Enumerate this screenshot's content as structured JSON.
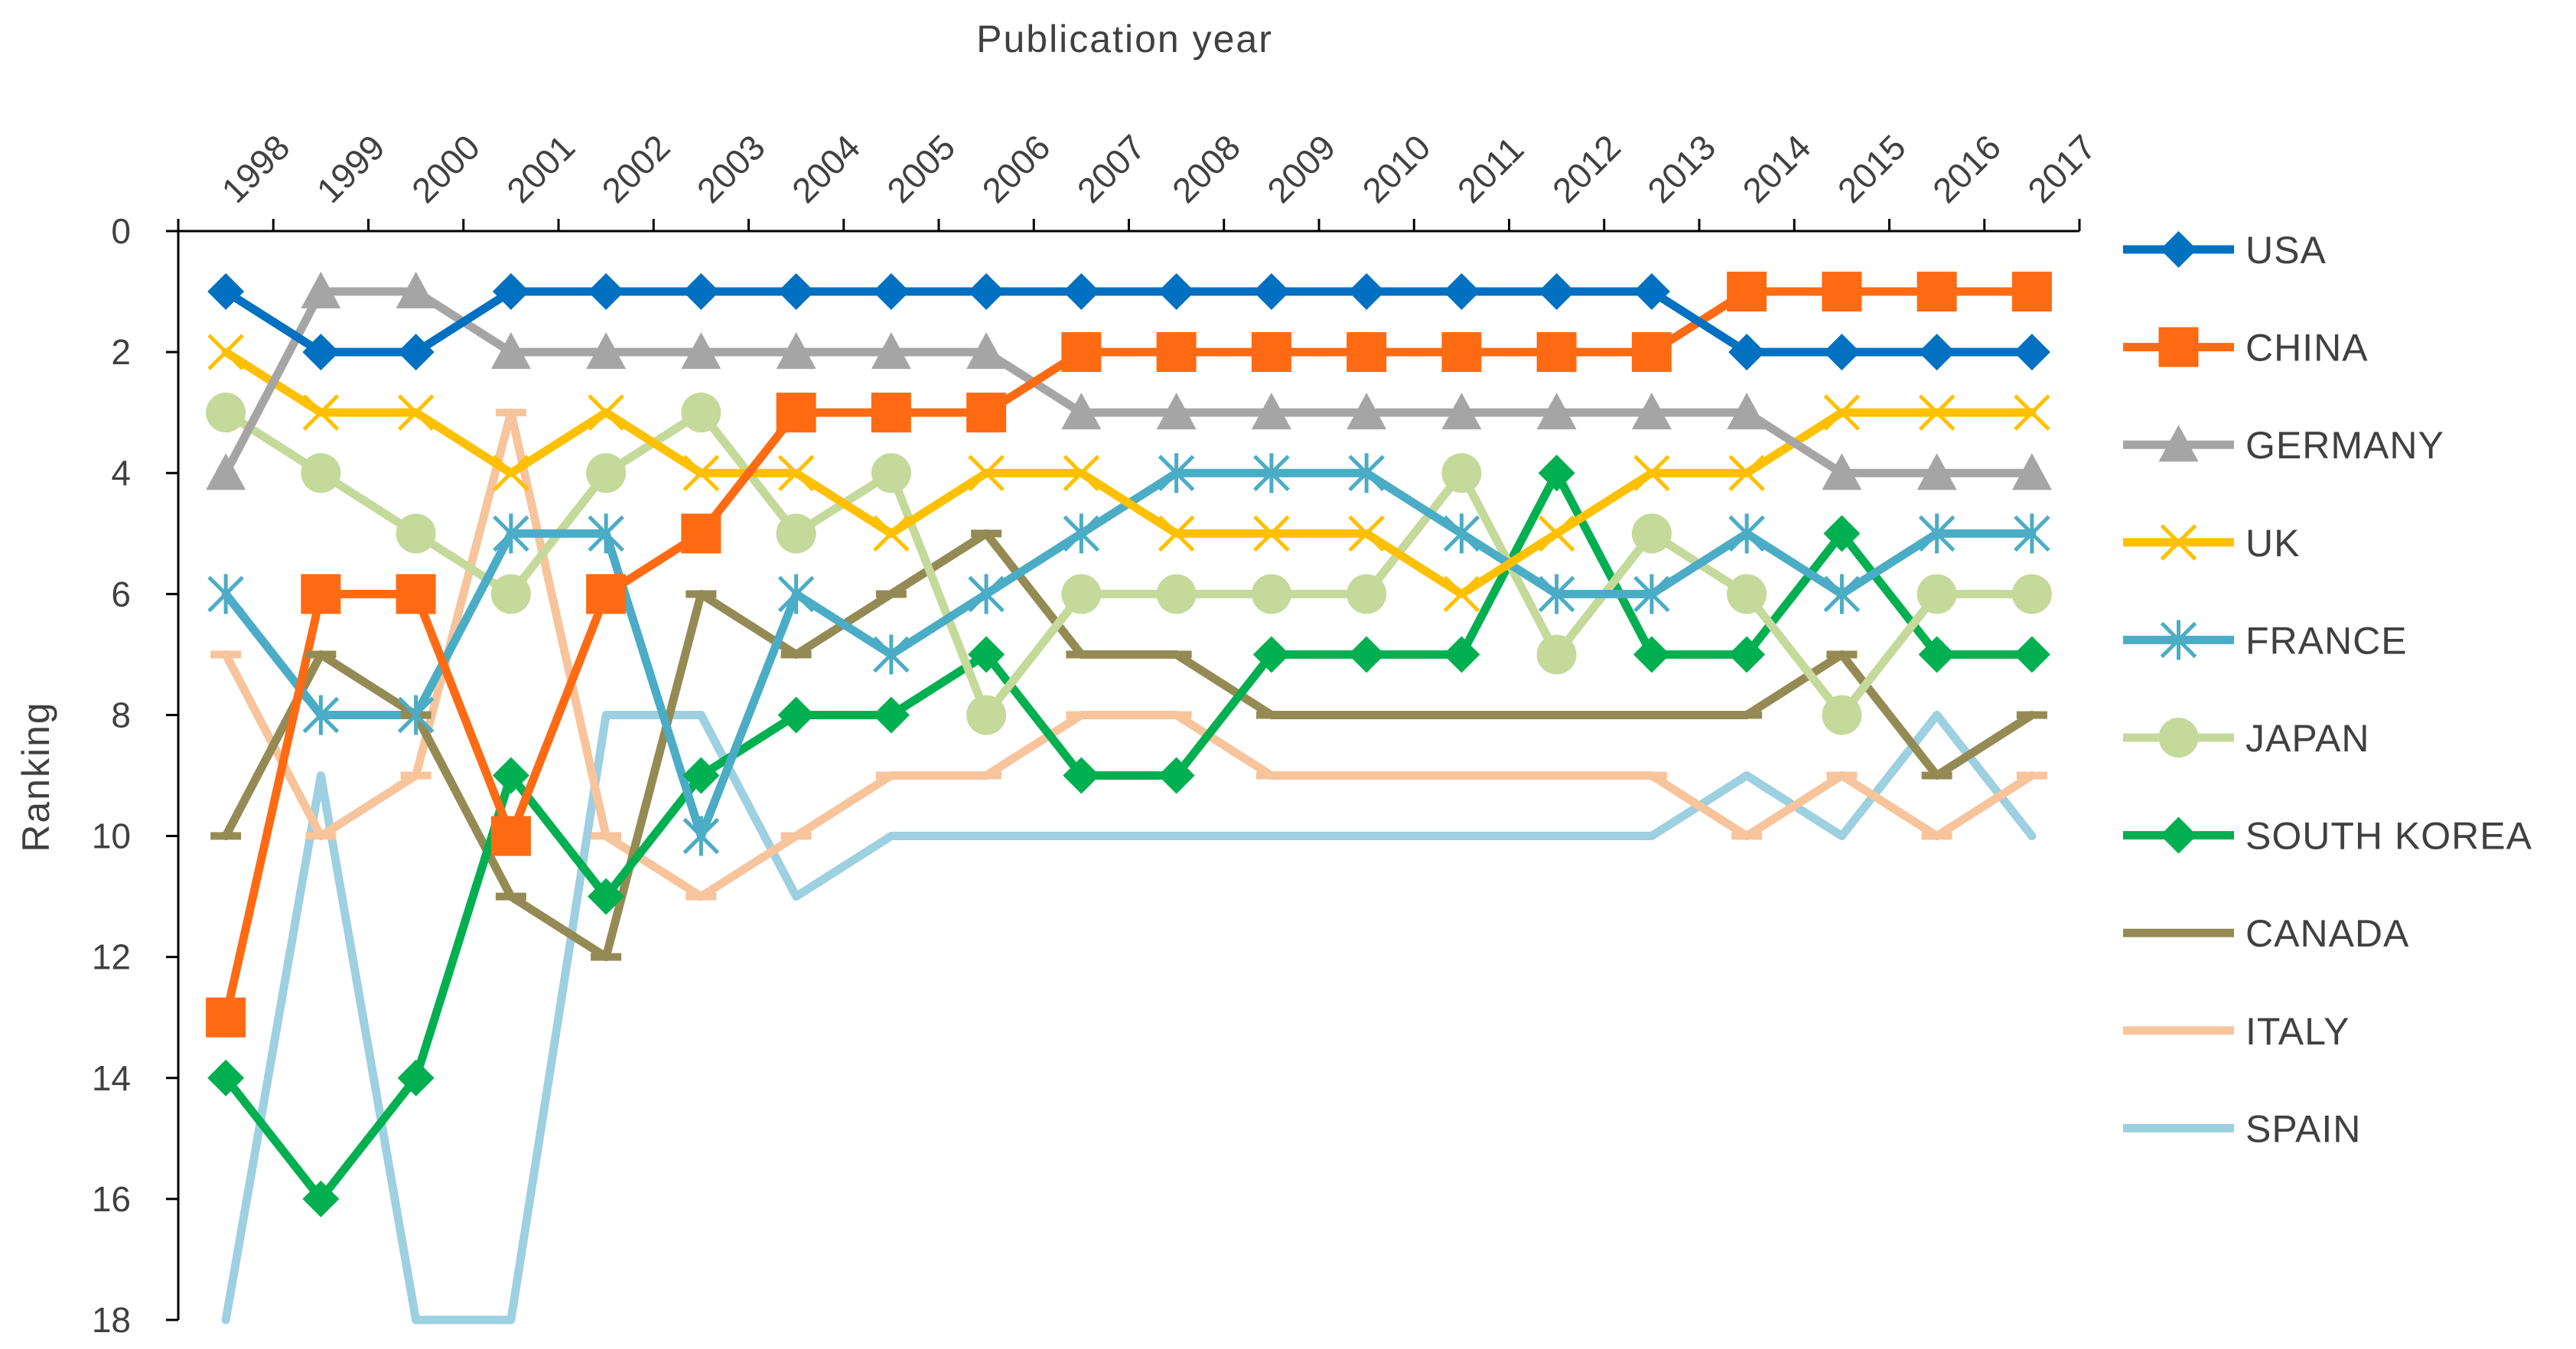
{
  "chart_data": {
    "type": "line",
    "xlabel": "Publication year",
    "ylabel": "Ranking",
    "ylim": [
      0,
      18
    ],
    "y_inverted": true,
    "y_ticks": [
      0,
      2,
      4,
      6,
      8,
      10,
      12,
      14,
      16,
      18
    ],
    "legend_position": "right",
    "grid": false,
    "categories": [
      "1998",
      "1999",
      "2000",
      "2001",
      "2002",
      "2003",
      "2004",
      "2005",
      "2006",
      "2007",
      "2008",
      "2009",
      "2010",
      "2011",
      "2012",
      "2013",
      "2014",
      "2015",
      "2016",
      "2017"
    ],
    "series": [
      {
        "name": "USA",
        "color": "#0070C0",
        "marker": "diamond",
        "values": [
          1,
          2,
          2,
          1,
          1,
          1,
          1,
          1,
          1,
          1,
          1,
          1,
          1,
          1,
          1,
          1,
          2,
          2,
          2,
          2
        ]
      },
      {
        "name": "CHINA",
        "color": "#FF6A13",
        "marker": "square",
        "values": [
          13,
          6,
          6,
          10,
          6,
          5,
          3,
          3,
          3,
          2,
          2,
          2,
          2,
          2,
          2,
          2,
          1,
          1,
          1,
          1
        ]
      },
      {
        "name": "GERMANY",
        "color": "#A5A5A5",
        "marker": "triangle",
        "values": [
          4,
          1,
          1,
          2,
          2,
          2,
          2,
          2,
          2,
          3,
          3,
          3,
          3,
          3,
          3,
          3,
          3,
          4,
          4,
          4
        ]
      },
      {
        "name": "UK",
        "color": "#FFC000",
        "marker": "x",
        "values": [
          2,
          3,
          3,
          4,
          3,
          4,
          4,
          5,
          4,
          4,
          5,
          5,
          5,
          6,
          5,
          4,
          4,
          3,
          3,
          3
        ]
      },
      {
        "name": "FRANCE",
        "color": "#4BACC6",
        "marker": "star",
        "values": [
          6,
          8,
          8,
          5,
          5,
          10,
          6,
          7,
          6,
          5,
          4,
          4,
          4,
          5,
          6,
          6,
          5,
          6,
          5,
          5
        ]
      },
      {
        "name": "JAPAN",
        "color": "#C5D99A",
        "marker": "circle",
        "values": [
          3,
          4,
          5,
          6,
          4,
          3,
          5,
          4,
          8,
          6,
          6,
          6,
          6,
          4,
          7,
          5,
          6,
          8,
          6,
          6
        ]
      },
      {
        "name": "SOUTH KOREA",
        "color": "#00B050",
        "marker": "diamond",
        "values": [
          14,
          16,
          14,
          9,
          11,
          9,
          8,
          8,
          7,
          9,
          9,
          7,
          7,
          7,
          4,
          7,
          7,
          5,
          7,
          7
        ]
      },
      {
        "name": "CANADA",
        "color": "#948A54",
        "marker": "dash",
        "values": [
          10,
          7,
          8,
          11,
          12,
          6,
          7,
          6,
          5,
          7,
          7,
          8,
          8,
          8,
          8,
          8,
          8,
          7,
          9,
          8
        ]
      },
      {
        "name": "ITALY",
        "color": "#F8C49C",
        "marker": "dash",
        "values": [
          7,
          10,
          9,
          3,
          10,
          11,
          10,
          9,
          9,
          8,
          8,
          9,
          9,
          9,
          9,
          9,
          10,
          9,
          10,
          9
        ]
      },
      {
        "name": "SPAIN",
        "color": "#9DD0E0",
        "marker": "none",
        "values": [
          18,
          9,
          18,
          18,
          8,
          8,
          11,
          10,
          10,
          10,
          10,
          10,
          10,
          10,
          10,
          10,
          9,
          10,
          8,
          10
        ]
      }
    ]
  }
}
